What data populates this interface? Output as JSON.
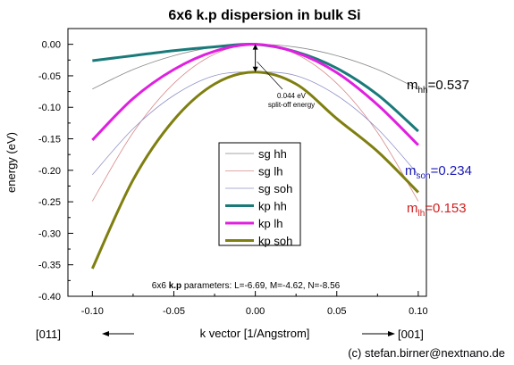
{
  "chart_data": {
    "type": "line",
    "title": "6x6 k.p dispersion in bulk Si",
    "xlabel": "k vector [1/Angstrom]",
    "ylabel": "energy (eV)",
    "xlim": [
      -0.115,
      0.105
    ],
    "ylim": [
      -0.4,
      0.025
    ],
    "xticks": [
      -0.1,
      -0.05,
      0.0,
      0.05,
      0.1
    ],
    "xtick_labels": [
      "-0.10",
      "-0.05",
      "0.00",
      "0.05",
      "0.10"
    ],
    "yticks": [
      0.0,
      -0.05,
      -0.1,
      -0.15,
      -0.2,
      -0.25,
      -0.3,
      -0.35,
      -0.4
    ],
    "ytick_labels": [
      "0.00",
      "-0.05",
      "-0.10",
      "-0.15",
      "-0.20",
      "-0.25",
      "-0.30",
      "-0.35",
      "-0.40"
    ],
    "grid": false,
    "legend_position": "center",
    "series": [
      {
        "name": "sg hh",
        "color": "#888888",
        "width": 0.8,
        "x": [
          -0.1,
          -0.075,
          -0.05,
          -0.025,
          0.0,
          0.025,
          0.05,
          0.075,
          0.1
        ],
        "y": [
          -0.071,
          -0.04,
          -0.018,
          -0.0045,
          0.0,
          -0.0045,
          -0.018,
          -0.04,
          -0.071
        ]
      },
      {
        "name": "sg lh",
        "color": "#d98a8a",
        "width": 0.8,
        "x": [
          -0.1,
          -0.075,
          -0.05,
          -0.025,
          0.0,
          0.025,
          0.05,
          0.075,
          0.1
        ],
        "y": [
          -0.249,
          -0.14,
          -0.062,
          -0.0155,
          0.0,
          -0.0155,
          -0.062,
          -0.14,
          -0.249
        ]
      },
      {
        "name": "sg soh",
        "color": "#9090c8",
        "width": 0.8,
        "x": [
          -0.1,
          -0.075,
          -0.05,
          -0.025,
          0.0,
          0.025,
          0.05,
          0.075,
          0.1
        ],
        "y": [
          -0.207,
          -0.134,
          -0.0811,
          -0.0497,
          -0.044,
          -0.0497,
          -0.0811,
          -0.134,
          -0.207
        ]
      },
      {
        "name": "kp hh",
        "color": "#1a7a7a",
        "width": 3,
        "x": [
          -0.1,
          -0.075,
          -0.05,
          -0.025,
          0.0,
          0.025,
          0.05,
          0.075,
          0.1
        ],
        "y": [
          -0.026,
          -0.018,
          -0.01,
          -0.004,
          0.0,
          -0.012,
          -0.038,
          -0.08,
          -0.138
        ]
      },
      {
        "name": "kp lh",
        "color": "#e020e0",
        "width": 3,
        "x": [
          -0.1,
          -0.075,
          -0.05,
          -0.025,
          0.0,
          0.025,
          0.05,
          0.075,
          0.1
        ],
        "y": [
          -0.152,
          -0.086,
          -0.04,
          -0.011,
          0.0,
          -0.013,
          -0.045,
          -0.096,
          -0.16
        ]
      },
      {
        "name": "kp soh",
        "color": "#7f7f10",
        "width": 3,
        "x": [
          -0.1,
          -0.075,
          -0.05,
          -0.025,
          0.0,
          0.025,
          0.05,
          0.075,
          0.1
        ],
        "y": [
          -0.356,
          -0.215,
          -0.12,
          -0.063,
          -0.044,
          -0.063,
          -0.118,
          -0.17,
          -0.235
        ]
      }
    ],
    "annotations": [
      {
        "name": "split-off",
        "text_line1": "0.044 eV",
        "text_line2": "split-off energy",
        "x": 0.0,
        "y_top": 0.0,
        "y_bottom": -0.044
      },
      {
        "name": "mass-hh",
        "prefix": "m",
        "sub": "hh",
        "value": "=0.537",
        "color": "#000000"
      },
      {
        "name": "mass-soh",
        "prefix": "m",
        "sub": "soh",
        "value": "=0.234",
        "color": "#1a1ab8"
      },
      {
        "name": "mass-lh",
        "prefix": "m",
        "sub": "lh",
        "value": "=0.153",
        "color": "#d02020"
      }
    ],
    "parameters_text": {
      "pre": "6x6 ",
      "bold": "k.p",
      "post": " parameters: L=-6.69, M=-4.62, N=-8.56"
    },
    "direction_left": "[011]",
    "direction_right": "[001]",
    "credit": "(c) stefan.birner@nextnano.de"
  }
}
